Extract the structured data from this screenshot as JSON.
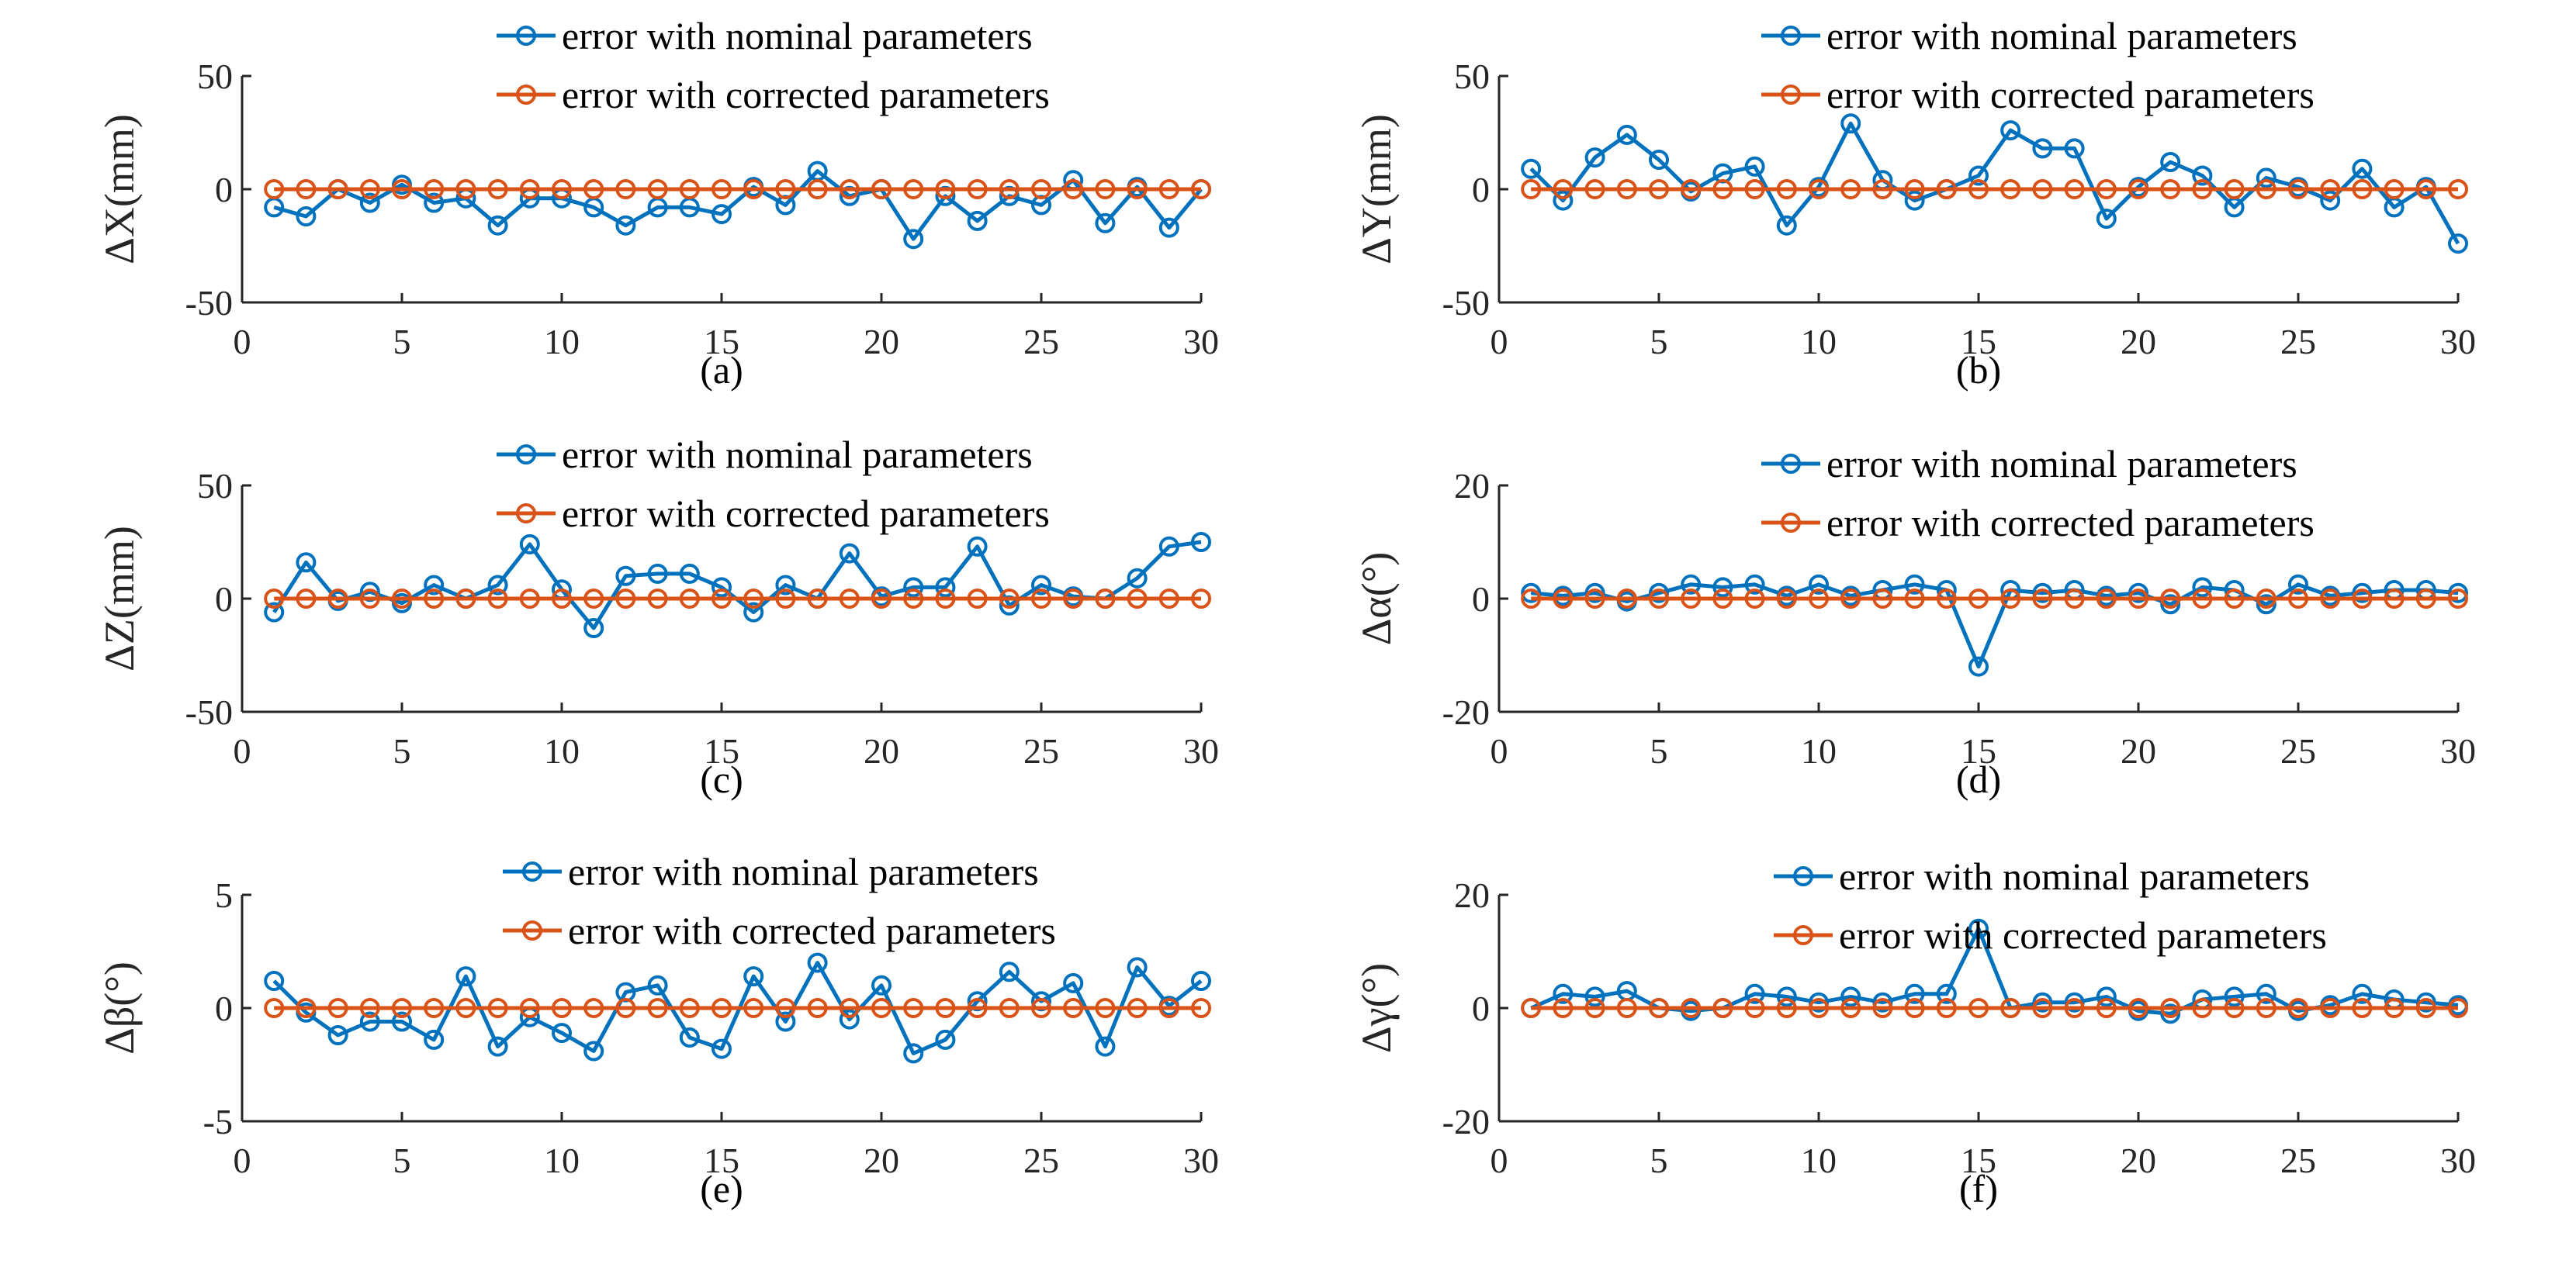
{
  "colors": {
    "nominal": "#0072BD",
    "corrected": "#D95319",
    "axis": "#262626"
  },
  "chart_data": [
    {
      "type": "line",
      "caption": "(a)",
      "ylabel": "ΔX(mm)",
      "ylim": [
        -50,
        50
      ],
      "yticks": [
        "50",
        "0",
        "-50"
      ],
      "ytick_values": [
        50,
        0,
        -50
      ],
      "xlim": [
        0,
        30
      ],
      "xticks": [
        "0",
        "5",
        "10",
        "15",
        "20",
        "25",
        "30"
      ],
      "xtick_values": [
        0,
        5,
        10,
        15,
        20,
        25,
        30
      ],
      "x": [
        1,
        2,
        3,
        4,
        5,
        6,
        7,
        8,
        9,
        10,
        11,
        12,
        13,
        14,
        15,
        16,
        17,
        18,
        19,
        20,
        21,
        22,
        23,
        24,
        25,
        26,
        27,
        28,
        29,
        30
      ],
      "series": [
        {
          "name": "error with nominal parameters",
          "key": "nominal",
          "values": [
            -8,
            -12,
            0,
            -6,
            2,
            -6,
            -4,
            -16,
            -4,
            -4,
            -8,
            -16,
            -8,
            -8,
            -11,
            1,
            -7,
            8,
            -3,
            0,
            -22,
            -3,
            -14,
            -3,
            -7,
            4,
            -15,
            1,
            -17,
            0
          ]
        },
        {
          "name": "error with corrected parameters",
          "key": "corrected",
          "values": [
            0,
            0,
            0,
            0,
            0,
            0,
            0,
            0,
            0,
            0,
            0,
            0,
            0,
            0,
            0,
            0,
            0,
            0,
            0,
            0,
            0,
            0,
            0,
            0,
            0,
            0,
            0,
            0,
            0,
            0
          ]
        }
      ]
    },
    {
      "type": "line",
      "caption": "(b)",
      "ylabel": "ΔY(mm)",
      "ylim": [
        -50,
        50
      ],
      "yticks": [
        "50",
        "0",
        "-50"
      ],
      "ytick_values": [
        50,
        0,
        -50
      ],
      "xlim": [
        0,
        30
      ],
      "xticks": [
        "0",
        "5",
        "10",
        "15",
        "20",
        "25",
        "30"
      ],
      "xtick_values": [
        0,
        5,
        10,
        15,
        20,
        25,
        30
      ],
      "x": [
        1,
        2,
        3,
        4,
        5,
        6,
        7,
        8,
        9,
        10,
        11,
        12,
        13,
        14,
        15,
        16,
        17,
        18,
        19,
        20,
        21,
        22,
        23,
        24,
        25,
        26,
        27,
        28,
        29,
        30
      ],
      "series": [
        {
          "name": "error with nominal parameters",
          "key": "nominal",
          "values": [
            9,
            -5,
            14,
            24,
            13,
            -1,
            7,
            10,
            -16,
            1,
            29,
            4,
            -5,
            0,
            6,
            26,
            18,
            18,
            -13,
            1,
            12,
            6,
            -8,
            5,
            1,
            -5,
            9,
            -8,
            1,
            -24
          ]
        },
        {
          "name": "error with corrected parameters",
          "key": "corrected",
          "values": [
            0,
            0,
            0,
            0,
            0,
            0,
            0,
            0,
            0,
            0,
            0,
            0,
            0,
            0,
            0,
            0,
            0,
            0,
            0,
            0,
            0,
            0,
            0,
            0,
            0,
            0,
            0,
            0,
            0,
            0
          ]
        }
      ]
    },
    {
      "type": "line",
      "caption": "(c)",
      "ylabel": "ΔZ(mm)",
      "ylim": [
        -50,
        50
      ],
      "yticks": [
        "50",
        "0",
        "-50"
      ],
      "ytick_values": [
        50,
        0,
        -50
      ],
      "xlim": [
        0,
        30
      ],
      "xticks": [
        "0",
        "5",
        "10",
        "15",
        "20",
        "25",
        "30"
      ],
      "xtick_values": [
        0,
        5,
        10,
        15,
        20,
        25,
        30
      ],
      "x": [
        1,
        2,
        3,
        4,
        5,
        6,
        7,
        8,
        9,
        10,
        11,
        12,
        13,
        14,
        15,
        16,
        17,
        18,
        19,
        20,
        21,
        22,
        23,
        24,
        25,
        26,
        27,
        28,
        29,
        30
      ],
      "series": [
        {
          "name": "error with nominal parameters",
          "key": "nominal",
          "values": [
            -6,
            16,
            -1,
            3,
            -2,
            6,
            0,
            6,
            24,
            4,
            -13,
            10,
            11,
            11,
            5,
            -6,
            6,
            0,
            20,
            1,
            5,
            5,
            23,
            -3,
            6,
            1,
            0,
            9,
            23,
            25
          ]
        },
        {
          "name": "error with corrected parameters",
          "key": "corrected",
          "values": [
            0,
            0,
            0,
            0,
            0,
            0,
            0,
            0,
            0,
            0,
            0,
            0,
            0,
            0,
            0,
            0,
            0,
            0,
            0,
            0,
            0,
            0,
            0,
            0,
            0,
            0,
            0,
            0,
            0,
            0
          ]
        }
      ]
    },
    {
      "type": "line",
      "caption": "(d)",
      "ylabel": "Δα(°)",
      "ylim": [
        -20,
        20
      ],
      "yticks": [
        "20",
        "0",
        "-20"
      ],
      "ytick_values": [
        20,
        0,
        -20
      ],
      "xlim": [
        0,
        30
      ],
      "xticks": [
        "0",
        "5",
        "10",
        "15",
        "20",
        "25",
        "30"
      ],
      "xtick_values": [
        0,
        5,
        10,
        15,
        20,
        25,
        30
      ],
      "x": [
        1,
        2,
        3,
        4,
        5,
        6,
        7,
        8,
        9,
        10,
        11,
        12,
        13,
        14,
        15,
        16,
        17,
        18,
        19,
        20,
        21,
        22,
        23,
        24,
        25,
        26,
        27,
        28,
        29,
        30
      ],
      "series": [
        {
          "name": "error with nominal parameters",
          "key": "nominal",
          "values": [
            1,
            0.5,
            1,
            -0.5,
            1,
            2.5,
            2,
            2.5,
            0.5,
            2.5,
            0.5,
            1.5,
            2.5,
            1.5,
            -12,
            1.5,
            1,
            1.5,
            0.5,
            1,
            -1,
            2,
            1.5,
            -1,
            2.5,
            0.5,
            1,
            1.5,
            1.5,
            1
          ]
        },
        {
          "name": "error with corrected parameters",
          "key": "corrected",
          "values": [
            0,
            0,
            0,
            0,
            0,
            0,
            0,
            0,
            0,
            0,
            0,
            0,
            0,
            0,
            0,
            0,
            0,
            0,
            0,
            0,
            0,
            0,
            0,
            0,
            0,
            0,
            0,
            0,
            0,
            0
          ]
        }
      ]
    },
    {
      "type": "line",
      "caption": "(e)",
      "ylabel": "Δβ(°)",
      "ylim": [
        -5,
        5
      ],
      "yticks": [
        "5",
        "0",
        "-5"
      ],
      "ytick_values": [
        5,
        0,
        -5
      ],
      "xlim": [
        0,
        30
      ],
      "xticks": [
        "0",
        "5",
        "10",
        "15",
        "20",
        "25",
        "30"
      ],
      "xtick_values": [
        0,
        5,
        10,
        15,
        20,
        25,
        30
      ],
      "x": [
        1,
        2,
        3,
        4,
        5,
        6,
        7,
        8,
        9,
        10,
        11,
        12,
        13,
        14,
        15,
        16,
        17,
        18,
        19,
        20,
        21,
        22,
        23,
        24,
        25,
        26,
        27,
        28,
        29,
        30
      ],
      "series": [
        {
          "name": "error with nominal parameters",
          "key": "nominal",
          "values": [
            1.2,
            -0.2,
            -1.2,
            -0.6,
            -0.6,
            -1.4,
            1.4,
            -1.7,
            -0.4,
            -1.1,
            -1.9,
            0.7,
            1,
            -1.3,
            -1.8,
            1.4,
            -0.6,
            2,
            -0.5,
            1,
            -2,
            -1.4,
            0.3,
            1.6,
            0.3,
            1.1,
            -1.7,
            1.8,
            0.1,
            1.2
          ]
        },
        {
          "name": "error with corrected parameters",
          "key": "corrected",
          "values": [
            0,
            0,
            0,
            0,
            0,
            0,
            0,
            0,
            0,
            0,
            0,
            0,
            0,
            0,
            0,
            0,
            0,
            0,
            0,
            0,
            0,
            0,
            0,
            0,
            0,
            0,
            0,
            0,
            0,
            0
          ]
        }
      ]
    },
    {
      "type": "line",
      "caption": "(f)",
      "ylabel": "Δγ(°)",
      "ylim": [
        -20,
        20
      ],
      "yticks": [
        "20",
        "0",
        "-20"
      ],
      "ytick_values": [
        20,
        0,
        -20
      ],
      "xlim": [
        0,
        30
      ],
      "xticks": [
        "0",
        "5",
        "10",
        "15",
        "20",
        "25",
        "30"
      ],
      "xtick_values": [
        0,
        5,
        10,
        15,
        20,
        25,
        30
      ],
      "x": [
        1,
        2,
        3,
        4,
        5,
        6,
        7,
        8,
        9,
        10,
        11,
        12,
        13,
        14,
        15,
        16,
        17,
        18,
        19,
        20,
        21,
        22,
        23,
        24,
        25,
        26,
        27,
        28,
        29,
        30
      ],
      "series": [
        {
          "name": "error with nominal parameters",
          "key": "nominal",
          "values": [
            0,
            2.5,
            2,
            3,
            0,
            -0.5,
            0,
            2.5,
            2,
            1,
            2,
            1,
            2.5,
            2.5,
            14,
            0,
            1,
            1,
            2,
            -0.5,
            -1,
            1.5,
            2,
            2.5,
            -0.5,
            0.5,
            2.5,
            1.5,
            1,
            0.5
          ]
        },
        {
          "name": "error with corrected parameters",
          "key": "corrected",
          "values": [
            0,
            0,
            0,
            0,
            0,
            0,
            0,
            0,
            0,
            0,
            0,
            0,
            0,
            0,
            0,
            0,
            0,
            0,
            0,
            0,
            0,
            0,
            0,
            0,
            0,
            0,
            0,
            0,
            0,
            0
          ]
        }
      ]
    }
  ]
}
